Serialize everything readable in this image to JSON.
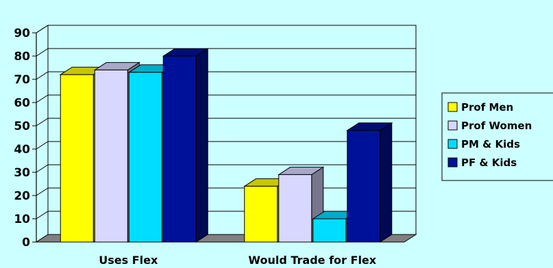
{
  "chart_data": {
    "type": "bar",
    "title": "",
    "xlabel": "",
    "ylabel": "",
    "categories": [
      "Uses Flex",
      "Would Trade for Flex"
    ],
    "series": [
      {
        "name": "Prof Men",
        "color": "#ffff00",
        "values": [
          72,
          24
        ]
      },
      {
        "name": "Prof Women",
        "color": "#d7d7ff",
        "values": [
          74,
          29
        ]
      },
      {
        "name": "PM & Kids",
        "color": "#00ddff",
        "values": [
          73,
          10
        ]
      },
      {
        "name": "PF & Kids",
        "color": "#001199",
        "values": [
          80,
          48
        ]
      }
    ],
    "ylim": [
      0,
      90
    ],
    "yticks": [
      0,
      10,
      20,
      30,
      40,
      50,
      60,
      70,
      80,
      90
    ],
    "grid": true,
    "legend_position": "right",
    "style": "3d-bar"
  }
}
